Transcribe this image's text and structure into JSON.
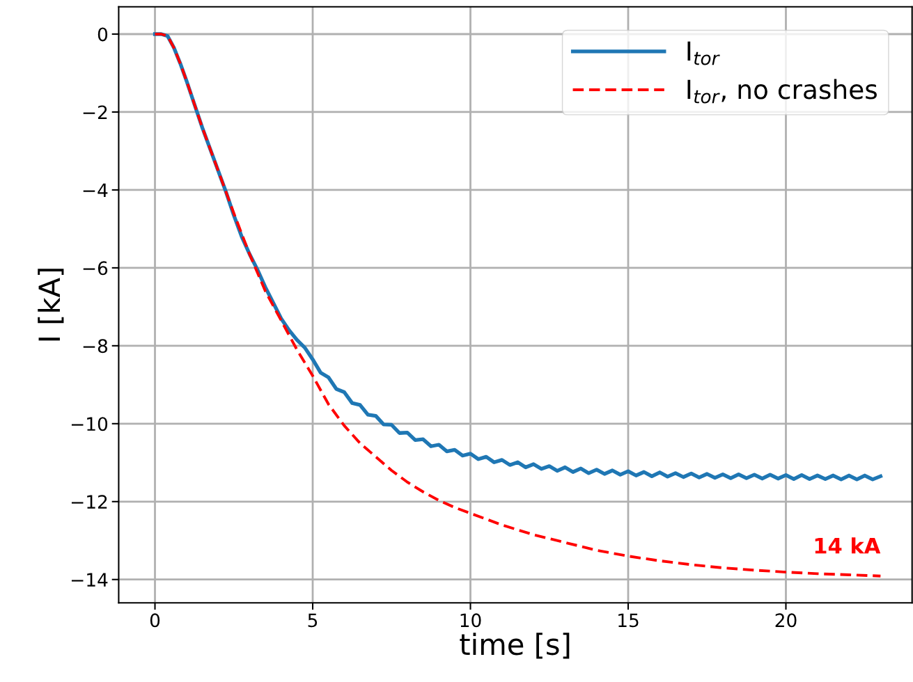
{
  "chart_data": {
    "type": "line",
    "xlabel": "time [s]",
    "ylabel": "I [kA]",
    "xlim": [
      -1.15,
      24
    ],
    "ylim": [
      -14.6,
      0.7
    ],
    "xticks": [
      0,
      5,
      10,
      15,
      20
    ],
    "yticks": [
      0,
      -2,
      -4,
      -6,
      -8,
      -10,
      -12,
      -14
    ],
    "grid": true,
    "legend": "top right",
    "series": [
      {
        "name": "I$_{tor}$",
        "color": "#1f77b4",
        "line_style": "solid",
        "x": [
          0,
          0.2,
          0.4,
          0.6,
          0.8,
          1,
          1.25,
          1.5,
          1.75,
          2,
          2.25,
          2.5,
          2.75,
          3,
          3.25,
          3.5,
          3.75,
          4,
          4.25,
          4.5,
          4.75,
          5,
          5.25,
          5.5,
          5.75,
          6,
          6.25,
          6.5,
          6.75,
          7,
          7.25,
          7.5,
          7.75,
          8,
          8.25,
          8.5,
          8.75,
          9,
          9.25,
          9.5,
          9.75,
          10,
          10.25,
          10.5,
          10.75,
          11,
          11.25,
          11.5,
          11.75,
          12,
          12.25,
          12.5,
          12.75,
          13,
          13.25,
          13.5,
          13.75,
          14,
          14.25,
          14.5,
          14.75,
          15,
          15.25,
          15.5,
          15.75,
          16,
          16.25,
          16.5,
          16.75,
          17,
          17.25,
          17.5,
          17.75,
          18,
          18.25,
          18.5,
          18.75,
          19,
          19.25,
          19.5,
          19.75,
          20,
          20.25,
          20.5,
          20.75,
          21,
          21.25,
          21.5,
          21.75,
          22,
          22.25,
          22.5,
          22.75,
          23
        ],
        "values": [
          0,
          0,
          -0.05,
          -0.35,
          -0.75,
          -1.2,
          -1.8,
          -2.4,
          -2.95,
          -3.5,
          -4.05,
          -4.65,
          -5.2,
          -5.65,
          -6.05,
          -6.5,
          -6.9,
          -7.3,
          -7.6,
          -7.85,
          -8.05,
          -8.35,
          -8.69,
          -8.81,
          -9.11,
          -9.19,
          -9.47,
          -9.52,
          -9.77,
          -9.8,
          -10.02,
          -10.03,
          -10.24,
          -10.23,
          -10.42,
          -10.4,
          -10.58,
          -10.54,
          -10.71,
          -10.67,
          -10.82,
          -10.77,
          -10.91,
          -10.85,
          -10.99,
          -10.93,
          -11.06,
          -10.99,
          -11.12,
          -11.04,
          -11.16,
          -11.09,
          -11.21,
          -11.12,
          -11.24,
          -11.15,
          -11.27,
          -11.18,
          -11.29,
          -11.2,
          -11.31,
          -11.22,
          -11.33,
          -11.24,
          -11.35,
          -11.25,
          -11.36,
          -11.27,
          -11.37,
          -11.28,
          -11.38,
          -11.29,
          -11.39,
          -11.3,
          -11.4,
          -11.3,
          -11.4,
          -11.31,
          -11.41,
          -11.31,
          -11.41,
          -11.32,
          -11.42,
          -11.32,
          -11.42,
          -11.33,
          -11.42,
          -11.33,
          -11.43,
          -11.33,
          -11.43,
          -11.33,
          -11.43,
          -11.35
        ]
      },
      {
        "name": "I$_{tor}$, no crashes",
        "color": "#ff0000",
        "line_style": "dashed",
        "x": [
          0,
          0.2,
          0.4,
          0.6,
          0.8,
          1,
          1.5,
          2,
          2.5,
          3,
          3.5,
          4,
          4.5,
          5,
          5.5,
          6,
          6.5,
          7,
          7.5,
          8,
          8.5,
          9,
          9.5,
          10,
          11,
          12,
          13,
          14,
          15,
          16,
          17,
          18,
          19,
          20,
          21,
          22,
          23
        ],
        "values": [
          0,
          0,
          -0.05,
          -0.35,
          -0.75,
          -1.2,
          -2.4,
          -3.5,
          -4.6,
          -5.65,
          -6.6,
          -7.35,
          -8.1,
          -8.77,
          -9.5,
          -10.05,
          -10.5,
          -10.85,
          -11.2,
          -11.5,
          -11.75,
          -11.97,
          -12.15,
          -12.3,
          -12.6,
          -12.85,
          -13.05,
          -13.25,
          -13.4,
          -13.52,
          -13.62,
          -13.7,
          -13.76,
          -13.81,
          -13.85,
          -13.88,
          -13.91
        ]
      }
    ],
    "annotations": [
      {
        "text": "14 kA",
        "x": 23,
        "y": -13.91
      }
    ]
  }
}
